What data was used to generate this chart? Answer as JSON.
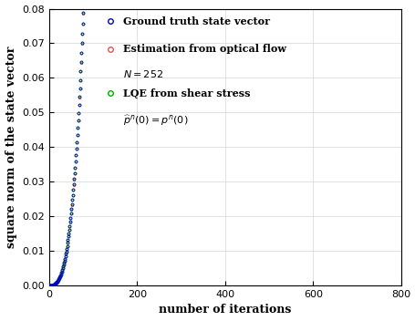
{
  "title": "",
  "xlabel": "number of iterations",
  "ylabel": "square norm of the state vector",
  "xlim": [
    0,
    800
  ],
  "ylim": [
    0,
    0.08
  ],
  "xticks": [
    0,
    200,
    400,
    600,
    800
  ],
  "yticks": [
    0,
    0.01,
    0.02,
    0.03,
    0.04,
    0.05,
    0.06,
    0.07,
    0.08
  ],
  "n_points": 750,
  "curve_exponent": 3.0,
  "curve_scale": 1.66e-07,
  "blue_color": "#0000cc",
  "red_color": "#dd5555",
  "green_color": "#00aa00",
  "text_color": "#000000",
  "legend_entries": [
    "Ground truth state vector",
    "Estimation from optical flow",
    "LQE from shear stress"
  ],
  "figsize": [
    4.56,
    3.52
  ],
  "dpi": 100
}
